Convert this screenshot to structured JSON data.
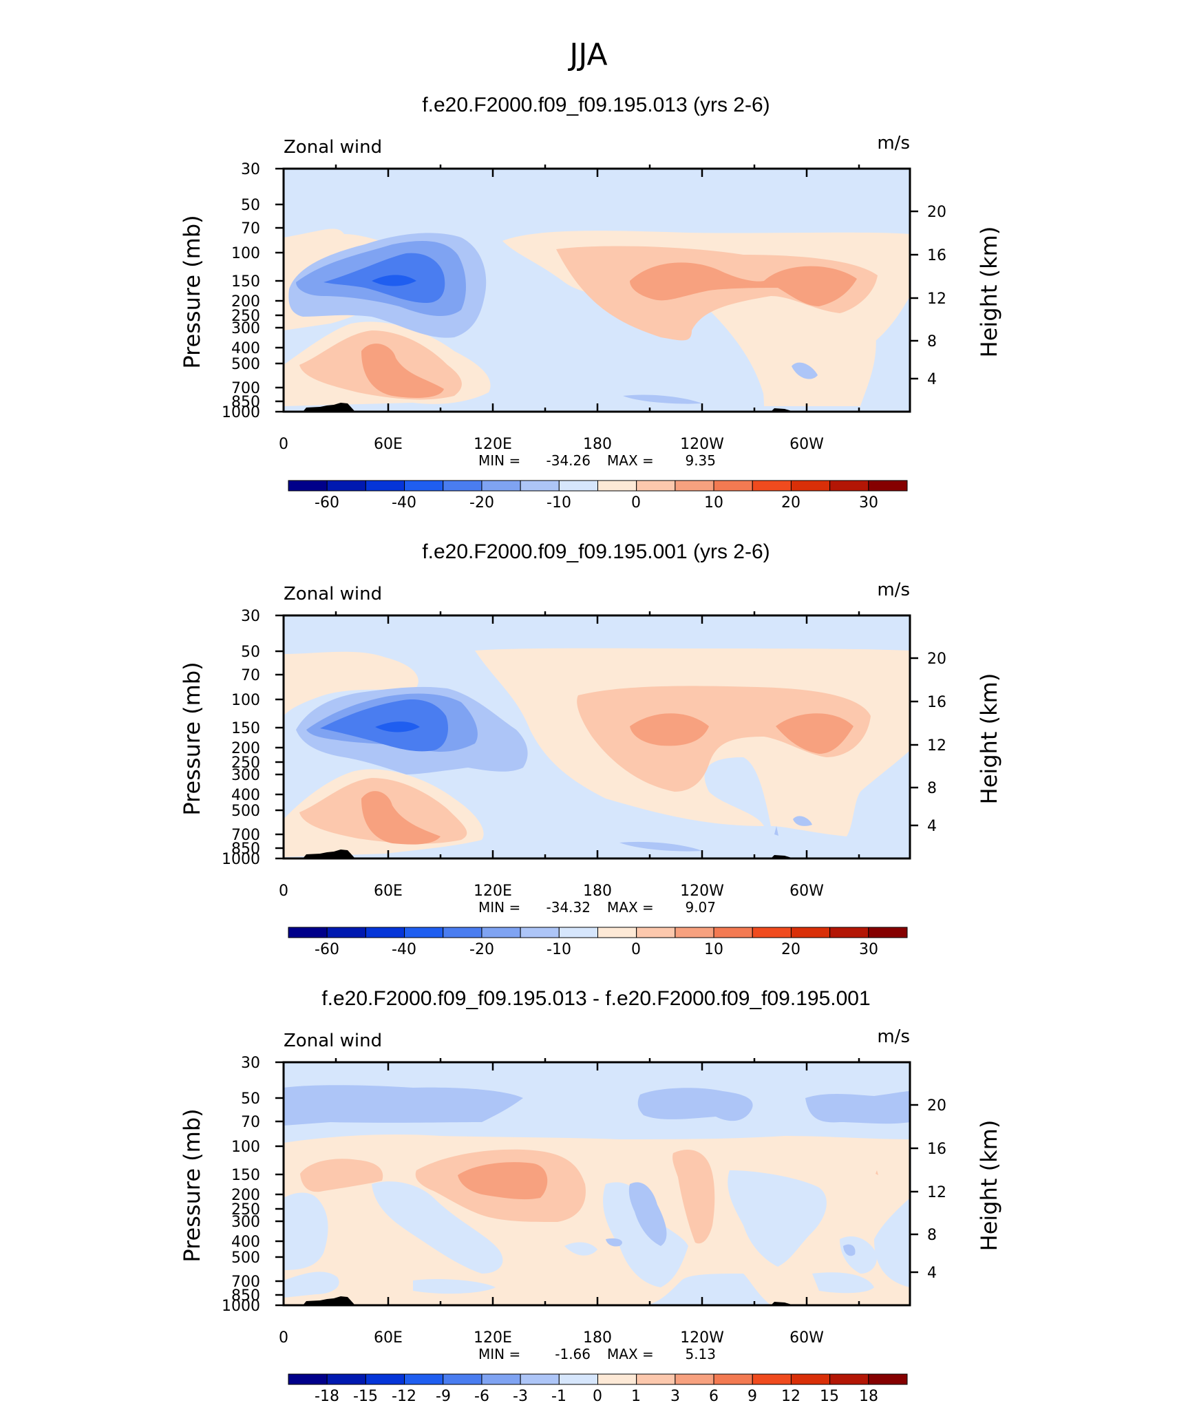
{
  "page": {
    "title": "JJA"
  },
  "chart_data": [
    {
      "type": "heatmap",
      "title": "f.e20.F2000.f09_f09.195.013 (yrs 2-6)",
      "left_string": "Zonal wind",
      "right_string": "m/s",
      "ylabel": "Pressure (mb)",
      "ylabel_right": "Height (km)",
      "x_ticks": [
        "0",
        "60E",
        "120E",
        "180",
        "120W",
        "60W"
      ],
      "y_ticks": [
        "30",
        "50",
        "70",
        "100",
        "150",
        "200",
        "250",
        "300",
        "400",
        "500",
        "700",
        "850",
        "1000"
      ],
      "y_right_ticks": [
        "20",
        "16",
        "12",
        "8",
        "4"
      ],
      "stats": {
        "min_label": "MIN =",
        "min": "-34.26",
        "max_label": "MAX =",
        "max": "9.35"
      },
      "colorbar": {
        "labels": [
          "-60",
          "-40",
          "-20",
          "-10",
          "0",
          "10",
          "20",
          "30"
        ],
        "colors": [
          "#00008a",
          "#0019b0",
          "#0535d8",
          "#1f5ef0",
          "#4a7df0",
          "#7fa3f2",
          "#adc5f7",
          "#d6e6fc",
          "#fde9d6",
          "#fcc8ad",
          "#f7a17f",
          "#f37a52",
          "#f04b1e",
          "#d92f08",
          "#b31605",
          "#850000"
        ]
      },
      "tags": [
        "Pressure",
        "Height"
      ],
      "units": "(mb)",
      "units_right": "(km)"
    },
    {
      "type": "heatmap",
      "title": "f.e20.F2000.f09_f09.195.001 (yrs 2-6)",
      "left_string": "Zonal wind",
      "right_string": "m/s",
      "ylabel": "Pressure (mb)",
      "ylabel_right": "Height (km)",
      "x_ticks": [
        "0",
        "60E",
        "120E",
        "180",
        "120W",
        "60W"
      ],
      "y_ticks": [
        "30",
        "50",
        "70",
        "100",
        "150",
        "200",
        "250",
        "300",
        "400",
        "500",
        "700",
        "850",
        "1000"
      ],
      "y_right_ticks": [
        "20",
        "16",
        "12",
        "8",
        "4"
      ],
      "stats": {
        "min_label": "MIN =",
        "min": "-34.32",
        "max_label": "MAX =",
        "max": "9.07"
      },
      "colorbar": {
        "labels": [
          "-60",
          "-40",
          "-20",
          "-10",
          "0",
          "10",
          "20",
          "30"
        ]
      }
    },
    {
      "type": "heatmap",
      "title": "f.e20.F2000.f09_f09.195.013 - f.e20.F2000.f09_f09.195.001",
      "left_string": "Zonal wind",
      "right_string": "m/s",
      "ylabel": "Pressure (mb)",
      "ylabel_right": "Height (km)",
      "x_ticks": [
        "0",
        "60E",
        "120E",
        "180",
        "120W",
        "60W"
      ],
      "y_ticks": [
        "30",
        "50",
        "70",
        "100",
        "150",
        "200",
        "250",
        "300",
        "400",
        "500",
        "700",
        "850",
        "1000"
      ],
      "y_right_ticks": [
        "20",
        "16",
        "12",
        "8",
        "4"
      ],
      "stats": {
        "min_label": "MIN =",
        "min": "-1.66",
        "max_label": "MAX =",
        "max": "5.13"
      },
      "colorbar": {
        "labels": [
          "-18",
          "-15",
          "-12",
          "-9",
          "-6",
          "-3",
          "-1",
          "0",
          "1",
          "3",
          "6",
          "9",
          "12",
          "15",
          "18"
        ]
      }
    }
  ]
}
